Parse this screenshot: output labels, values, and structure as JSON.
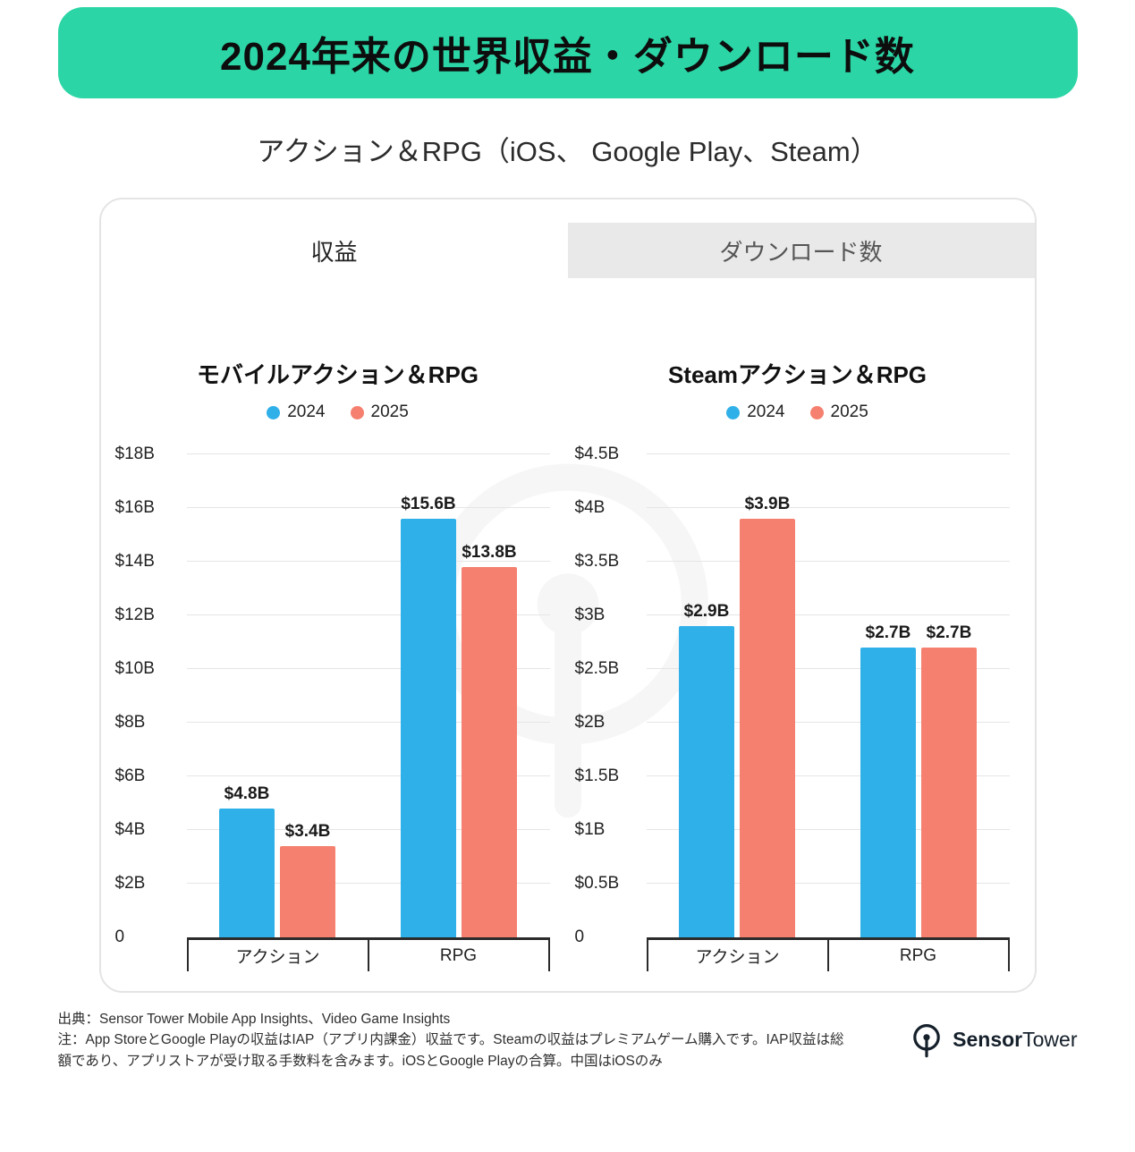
{
  "header": {
    "title": "2024年来の世界収益・ダウンロード数",
    "subtitle": "アクション＆RPG（iOS、 Google Play、Steam）"
  },
  "tabs": [
    {
      "label": "収益",
      "active": true
    },
    {
      "label": "ダウンロード数",
      "active": false
    }
  ],
  "chart_data": [
    {
      "type": "bar",
      "title": "モバイルアクション＆RPG",
      "categories": [
        "アクション",
        "RPG"
      ],
      "series": [
        {
          "name": "2024",
          "color": "#2FB0E8",
          "values": [
            4.8,
            15.6
          ],
          "labels": [
            "$4.8B",
            "$15.6B"
          ]
        },
        {
          "name": "2025",
          "color": "#F5806F",
          "values": [
            3.4,
            13.8
          ],
          "labels": [
            "$3.4B",
            "$13.8B"
          ]
        }
      ],
      "ylim": [
        0,
        18
      ],
      "ytick_values": [
        0,
        2,
        4,
        6,
        8,
        10,
        12,
        14,
        16,
        18
      ],
      "ytick_labels": [
        "0",
        "$2B",
        "$4B",
        "$6B",
        "$8B",
        "$10B",
        "$12B",
        "$14B",
        "$16B",
        "$18B"
      ],
      "grid": true,
      "legend_position": "top",
      "unit": "USD billions"
    },
    {
      "type": "bar",
      "title": "Steamアクション＆RPG",
      "categories": [
        "アクション",
        "RPG"
      ],
      "series": [
        {
          "name": "2024",
          "color": "#2FB0E8",
          "values": [
            2.9,
            2.7
          ],
          "labels": [
            "$2.9B",
            "$2.7B"
          ]
        },
        {
          "name": "2025",
          "color": "#F5806F",
          "values": [
            3.9,
            2.7
          ],
          "labels": [
            "$3.9B",
            "$2.7B"
          ]
        }
      ],
      "ylim": [
        0,
        4.5
      ],
      "ytick_values": [
        0,
        0.5,
        1,
        1.5,
        2,
        2.5,
        3,
        3.5,
        4,
        4.5
      ],
      "ytick_labels": [
        "0",
        "$0.5B",
        "$1B",
        "$1.5B",
        "$2B",
        "$2.5B",
        "$3B",
        "$3.5B",
        "$4B",
        "$4.5B"
      ],
      "grid": true,
      "legend_position": "top",
      "unit": "USD billions"
    }
  ],
  "footer": {
    "source": "出典：Sensor Tower Mobile App Insights、Video Game Insights",
    "note": "注：App StoreとGoogle Playの収益はIAP（アプリ内課金）収益です。Steamの収益はプレミアムゲーム購入です。IAP収益は総額であり、アプリストアが受け取る手数料を含みます。iOSとGoogle Playの合算。中国はiOSのみ",
    "logo": {
      "bold": "Sensor",
      "regular": "Tower"
    }
  },
  "colors": {
    "banner": "#2BD5A5",
    "blue": "#2FB0E8",
    "salmon": "#F5806F",
    "tab_inactive_bg": "#E9E9E9"
  }
}
